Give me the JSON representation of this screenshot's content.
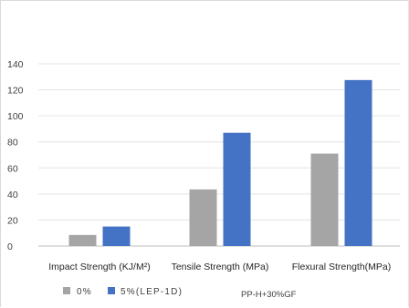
{
  "chart_data": {
    "type": "bar",
    "categories": [
      "Impact Strength (KJ/M²)",
      "Tensile Strength (MPa)",
      "Flexural Strength(MPa)"
    ],
    "series": [
      {
        "name": "0%",
        "values": [
          8.5,
          43.5,
          71
        ],
        "color": "#a5a5a5"
      },
      {
        "name": "5%(LEP-1D)",
        "values": [
          15,
          87,
          127.5
        ],
        "color": "#4472c4"
      }
    ],
    "yticks": [
      0,
      20,
      40,
      60,
      80,
      100,
      120,
      140
    ],
    "ylim": [
      0,
      140
    ],
    "grid": true,
    "legend": "bottom-left",
    "annotation": "PP-H+30%GF"
  }
}
